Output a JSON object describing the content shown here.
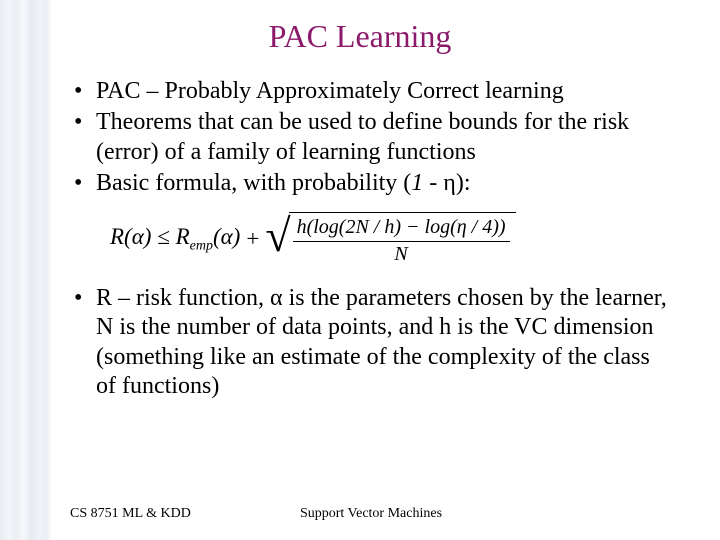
{
  "title": "PAC Learning",
  "title_color": "#8b1a6b",
  "bullets": {
    "b1": "PAC – Probably Approximately Correct learning",
    "b2": "Theorems that can be used to define bounds for the risk (error) of a family of learning functions",
    "b3_prefix": "Basic formula, with probability (",
    "b3_one": "1",
    "b3_minus": " - ",
    "b3_eta": "η",
    "b3_suffix": "):",
    "b4": "R – risk function, α is the parameters chosen by the learner, N is the number of data points, and h is the VC dimension (something like an estimate of the complexity of the class of functions)"
  },
  "formula": {
    "lhs": "R(α) ≤ R",
    "emp_sub": "emp",
    "lhs_tail": "(α)",
    "plus": "+",
    "num": "h(log(2N / h) − log(η / 4))",
    "den": "N"
  },
  "footer": {
    "left": "CS 8751 ML & KDD",
    "center": "Support Vector Machines"
  }
}
